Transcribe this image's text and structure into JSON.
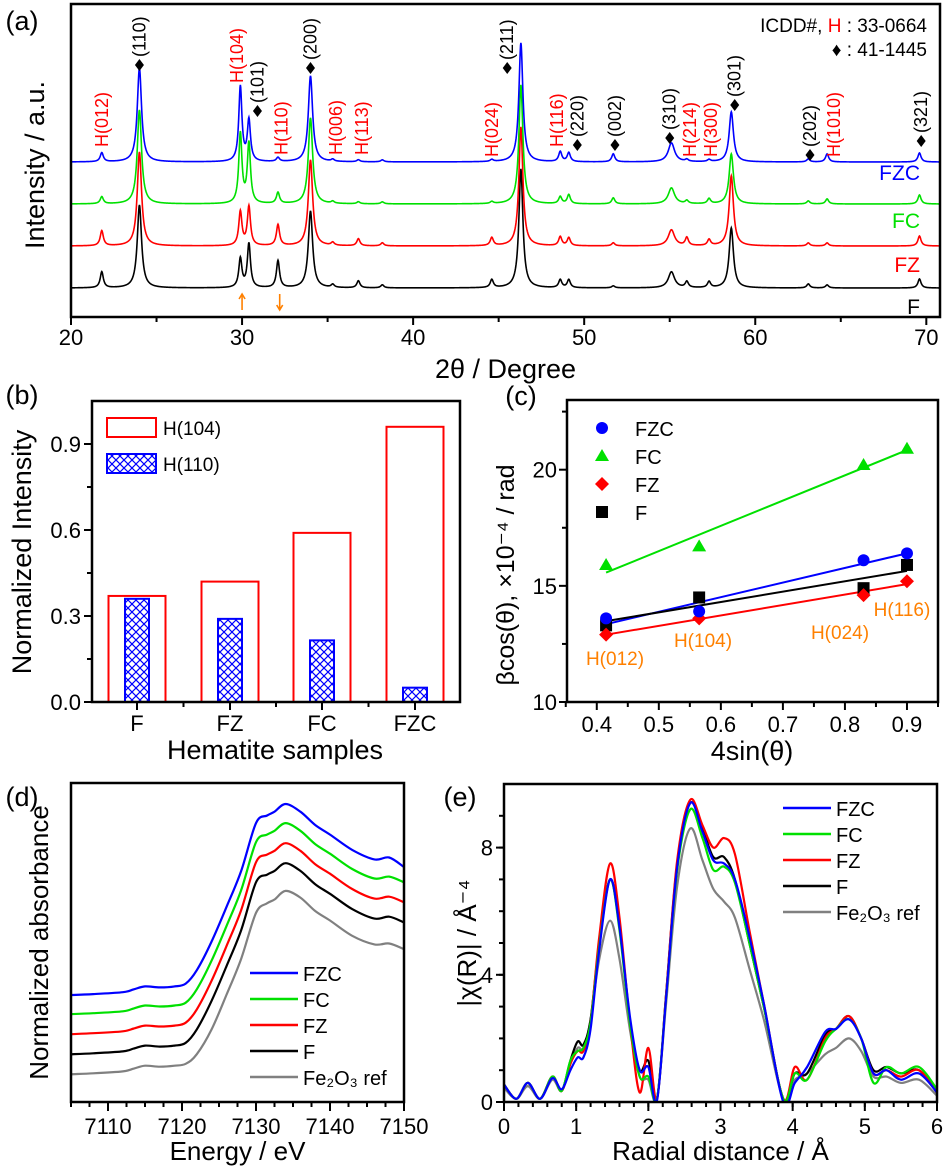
{
  "chart_data": [
    {
      "panel_label": "(a)",
      "type": "line",
      "xlabel": "2θ / Degree",
      "ylabel": "Intensity / a.u.",
      "xlim": [
        20,
        70.8
      ],
      "xticks": [
        20,
        30,
        40,
        50,
        60,
        70
      ],
      "ylim": [
        0,
        313
      ],
      "legend_note": {
        "prefix": "ICDD#, ",
        "h": "H",
        "h_suffix": " : 33-0664",
        "diamond": "♦",
        "diamond_suffix": " : 41-1445"
      },
      "peak_positions": [
        21.8,
        24.0,
        29.9,
        30.4,
        32.1,
        34.0,
        35.3,
        36.8,
        38.2,
        44.6,
        46.3,
        48.6,
        49.1,
        51.7,
        55.1,
        56.0,
        57.3,
        58.6,
        63.1,
        64.2,
        69.6
      ],
      "series": [
        {
          "name": "F",
          "color": "#000000",
          "offset": 29,
          "intensities": [
            16,
            83,
            29,
            44,
            27,
            77,
            3,
            7,
            3,
            8,
            119,
            8,
            8,
            2,
            16,
            6,
            6,
            60,
            4,
            3,
            9
          ]
        },
        {
          "name": "FZ",
          "color": "#ff0000",
          "offset": 71,
          "intensities": [
            15,
            94,
            34,
            39,
            21,
            86,
            3,
            7,
            3,
            8,
            119,
            9,
            8,
            3,
            16,
            8,
            6,
            70,
            3,
            3,
            10
          ]
        },
        {
          "name": "FC",
          "color": "#00e000",
          "offset": 113,
          "intensities": [
            7,
            94,
            70,
            60,
            11,
            86,
            2,
            2,
            2,
            2,
            119,
            7,
            9,
            6,
            16,
            3,
            5,
            50,
            3,
            5,
            9
          ]
        },
        {
          "name": "FZC",
          "color": "#0000ff",
          "offset": 155,
          "intensities": [
            9,
            94,
            75,
            41,
            4,
            86,
            2,
            2,
            2,
            2,
            119,
            10,
            9,
            8,
            19,
            2,
            2,
            50,
            3,
            8,
            9
          ]
        }
      ],
      "reflections": [
        {
          "text": "H(012)",
          "two_theta": 21.8,
          "phase": "H"
        },
        {
          "text": "(110)",
          "two_theta": 24.0,
          "phase": "diamond"
        },
        {
          "text": "H(104)",
          "two_theta": 29.7,
          "phase": "H"
        },
        {
          "text": "(101)",
          "two_theta": 30.9,
          "phase": "diamond"
        },
        {
          "text": "H(110)",
          "two_theta": 32.3,
          "phase": "H"
        },
        {
          "text": "(200)",
          "two_theta": 34.0,
          "phase": "diamond"
        },
        {
          "text": "H(006)",
          "two_theta": 35.5,
          "phase": "H"
        },
        {
          "text": "H(113)",
          "two_theta": 37.0,
          "phase": "H"
        },
        {
          "text": "H(024)",
          "two_theta": 44.6,
          "phase": "H"
        },
        {
          "text": "(211)",
          "two_theta": 45.5,
          "phase": "diamond"
        },
        {
          "text": "H(116)",
          "two_theta": 48.4,
          "phase": "H"
        },
        {
          "text": "(220)",
          "two_theta": 49.6,
          "phase": "diamond"
        },
        {
          "text": "(002)",
          "two_theta": 51.8,
          "phase": "diamond"
        },
        {
          "text": "(310)",
          "two_theta": 55.0,
          "phase": "diamond"
        },
        {
          "text": "H(214)",
          "two_theta": 56.2,
          "phase": "H"
        },
        {
          "text": "H(300)",
          "two_theta": 57.4,
          "phase": "H"
        },
        {
          "text": "(301)",
          "two_theta": 58.8,
          "phase": "diamond"
        },
        {
          "text": "(202)",
          "two_theta": 63.2,
          "phase": "diamond"
        },
        {
          "text": "H(1010)",
          "two_theta": 64.6,
          "phase": "H"
        },
        {
          "text": "(321)",
          "two_theta": 69.7,
          "phase": "diamond"
        }
      ],
      "arrows": [
        {
          "two_theta": 30.0,
          "direction": "up"
        },
        {
          "two_theta": 32.2,
          "direction": "down"
        }
      ],
      "colors": {
        "H": "#ff0000",
        "diamond": "#000000",
        "arrow": "#ff8000"
      }
    },
    {
      "panel_label": "(b)",
      "type": "bar",
      "xlabel": "Hematite samples",
      "ylabel": "Normalized Intensity",
      "categories": [
        "F",
        "FZ",
        "FC",
        "FZC"
      ],
      "ylim": [
        0,
        1.05
      ],
      "yticks": [
        "0.0",
        "0.3",
        "0.6",
        "0.9"
      ],
      "series": [
        {
          "name": "H(104)",
          "style": "open",
          "color": "#ff0000",
          "values": [
            0.37,
            0.42,
            0.59,
            0.96
          ]
        },
        {
          "name": "H(110)",
          "style": "crosshatch",
          "color": "#0000ff",
          "values": [
            0.36,
            0.29,
            0.215,
            0.05
          ]
        }
      ],
      "legend": "top-left"
    },
    {
      "panel_label": "(c)",
      "type": "scatter",
      "xlabel": "4sin(θ)",
      "ylabel": "βcos(θ), ×10⁻⁴ / rad",
      "xlim": [
        0.352,
        0.95
      ],
      "ylim": [
        10,
        23
      ],
      "xticks": [
        "0.4",
        "0.5",
        "0.6",
        "0.7",
        "0.8",
        "0.9"
      ],
      "yticks": [
        "10",
        "15",
        "20"
      ],
      "x": [
        0.415,
        0.565,
        0.83,
        0.9
      ],
      "point_labels": [
        "H(012)",
        "H(104)",
        "H(024)",
        "H(116)"
      ],
      "point_label_color": "#ff8000",
      "series": [
        {
          "name": "FZC",
          "marker": "circle",
          "color": "#0000ff",
          "values": [
            13.6,
            13.9,
            16.1,
            16.4
          ]
        },
        {
          "name": "FC",
          "marker": "triangle",
          "color": "#00e000",
          "values": [
            15.9,
            16.7,
            20.2,
            20.9
          ]
        },
        {
          "name": "FZ",
          "marker": "diamond",
          "color": "#ff0000",
          "values": [
            12.9,
            13.6,
            14.6,
            15.2
          ]
        },
        {
          "name": "F",
          "marker": "square",
          "color": "#000000",
          "values": [
            13.3,
            14.5,
            14.9,
            15.9
          ]
        }
      ],
      "fit": "linear",
      "legend": "top-left"
    },
    {
      "panel_label": "(d)",
      "type": "line",
      "xlabel": "Energy / eV",
      "ylabel": "Normalized absorbance",
      "xlim": [
        7105,
        7150
      ],
      "xticks": [
        7110,
        7120,
        7130,
        7140,
        7150
      ],
      "ylim": [
        -0.25,
        1.42
      ],
      "x": [
        7105,
        7108,
        7112,
        7113.5,
        7115,
        7117,
        7119,
        7120.5,
        7122,
        7124,
        7126,
        7128,
        7130,
        7131.5,
        7132.5,
        7134,
        7136,
        7138,
        7140,
        7143,
        7146,
        7148,
        7150
      ],
      "series": [
        {
          "name": "FZC",
          "color": "#0000ff",
          "values": [
            0.31,
            0.315,
            0.325,
            0.34,
            0.355,
            0.35,
            0.355,
            0.37,
            0.44,
            0.59,
            0.77,
            0.96,
            1.21,
            1.25,
            1.27,
            1.31,
            1.27,
            1.2,
            1.15,
            1.07,
            1.02,
            1.03,
            0.98
          ]
        },
        {
          "name": "FC",
          "color": "#00e000",
          "values": [
            0.21,
            0.215,
            0.225,
            0.24,
            0.255,
            0.25,
            0.255,
            0.27,
            0.34,
            0.49,
            0.67,
            0.86,
            1.11,
            1.15,
            1.17,
            1.21,
            1.17,
            1.1,
            1.05,
            0.97,
            0.92,
            0.93,
            0.9
          ]
        },
        {
          "name": "FZ",
          "color": "#ff0000",
          "values": [
            0.105,
            0.11,
            0.12,
            0.135,
            0.15,
            0.145,
            0.15,
            0.165,
            0.235,
            0.385,
            0.565,
            0.755,
            1.005,
            1.045,
            1.065,
            1.105,
            1.065,
            0.995,
            0.945,
            0.865,
            0.815,
            0.825,
            0.795
          ]
        },
        {
          "name": "F",
          "color": "#000000",
          "values": [
            0,
            0.005,
            0.015,
            0.03,
            0.045,
            0.04,
            0.045,
            0.06,
            0.13,
            0.28,
            0.46,
            0.65,
            0.9,
            0.94,
            0.96,
            1.0,
            0.96,
            0.89,
            0.84,
            0.76,
            0.71,
            0.72,
            0.69
          ]
        },
        {
          "name": "Fe₂O₃ ref",
          "color": "#808080",
          "values": [
            -0.105,
            -0.1,
            -0.09,
            -0.075,
            -0.06,
            -0.065,
            -0.06,
            -0.05,
            0.0,
            0.13,
            0.31,
            0.5,
            0.74,
            0.79,
            0.81,
            0.855,
            0.82,
            0.75,
            0.7,
            0.62,
            0.575,
            0.58,
            0.55
          ]
        }
      ],
      "legend": "bottom-right"
    },
    {
      "panel_label": "(e)",
      "type": "line",
      "xlabel": "Radial distance / Å",
      "ylabel": "|χ(R)| / Å⁻⁴",
      "xlim": [
        0,
        6
      ],
      "xticks": [
        0,
        1,
        2,
        3,
        4,
        5,
        6
      ],
      "ylim": [
        0,
        10
      ],
      "yticks": [
        0,
        4,
        8
      ],
      "x": [
        0,
        0.17,
        0.33,
        0.5,
        0.67,
        0.8,
        0.92,
        1.02,
        1.1,
        1.2,
        1.32,
        1.47,
        1.6,
        1.75,
        1.88,
        2.0,
        2.12,
        2.25,
        2.4,
        2.58,
        2.75,
        2.9,
        3.05,
        3.2,
        3.4,
        3.6,
        3.87,
        4.03,
        4.2,
        4.45,
        4.6,
        4.78,
        4.95,
        5.12,
        5.3,
        5.5,
        5.75,
        6.0
      ],
      "series": [
        {
          "name": "FZC",
          "color": "#0000ff",
          "values": [
            0.55,
            0.1,
            0.6,
            0.1,
            0.75,
            0.4,
            1.0,
            1.4,
            1.4,
            2.3,
            4.8,
            7.0,
            5.5,
            2.6,
            1.0,
            1.1,
            0.05,
            3.4,
            7.4,
            9.4,
            8.5,
            7.6,
            7.5,
            7.0,
            5.2,
            3.1,
            0.0,
            0.6,
            1.1,
            2.2,
            2.3,
            2.6,
            2.0,
            0.9,
            1.0,
            0.7,
            0.9,
            0.3
          ]
        },
        {
          "name": "FC",
          "color": "#00e000",
          "values": [
            0.55,
            0.1,
            0.6,
            0.1,
            0.8,
            0.35,
            1.3,
            1.6,
            1.7,
            2.5,
            4.9,
            7.0,
            5.4,
            2.4,
            0.8,
            0.8,
            0.1,
            3.4,
            7.3,
            9.2,
            8.3,
            7.3,
            7.4,
            6.9,
            5.0,
            3.0,
            0.1,
            0.9,
            0.7,
            1.9,
            2.3,
            2.6,
            2.0,
            0.6,
            1.1,
            0.9,
            1.1,
            0.4
          ]
        },
        {
          "name": "FZ",
          "color": "#ff0000",
          "values": [
            0.55,
            0.1,
            0.6,
            0.1,
            0.8,
            0.35,
            1.2,
            1.6,
            1.6,
            2.5,
            5.2,
            7.5,
            5.8,
            2.4,
            0.3,
            1.7,
            0.1,
            3.5,
            7.6,
            9.5,
            8.7,
            8.0,
            8.3,
            7.8,
            5.4,
            3.1,
            0.1,
            1.1,
            0.7,
            2.0,
            2.3,
            2.7,
            2.0,
            0.9,
            1.0,
            0.8,
            1.0,
            0.3
          ]
        },
        {
          "name": "F",
          "color": "#000000",
          "values": [
            0.55,
            0.1,
            0.6,
            0.1,
            0.8,
            0.35,
            1.3,
            1.9,
            1.8,
            2.6,
            5.0,
            7.0,
            5.5,
            2.5,
            1.0,
            1.3,
            0.1,
            3.5,
            7.5,
            9.4,
            8.6,
            7.7,
            7.7,
            7.0,
            5.0,
            3.0,
            0.1,
            0.9,
            0.9,
            2.1,
            2.3,
            2.7,
            2.0,
            1.0,
            1.1,
            0.9,
            1.0,
            0.3
          ]
        },
        {
          "name": "Fe₂O₃ ref",
          "color": "#808080",
          "values": [
            0.45,
            0.1,
            0.5,
            0.1,
            0.7,
            0.35,
            1.2,
            1.7,
            1.7,
            2.6,
            4.5,
            5.7,
            4.5,
            2.2,
            0.8,
            0.7,
            0.1,
            3.2,
            6.8,
            8.6,
            7.6,
            6.7,
            6.3,
            5.8,
            4.2,
            2.6,
            0.1,
            0.7,
            0.9,
            1.5,
            1.7,
            2.0,
            1.6,
            0.8,
            0.8,
            0.6,
            0.7,
            0.2
          ]
        }
      ],
      "legend": "top-right"
    }
  ]
}
